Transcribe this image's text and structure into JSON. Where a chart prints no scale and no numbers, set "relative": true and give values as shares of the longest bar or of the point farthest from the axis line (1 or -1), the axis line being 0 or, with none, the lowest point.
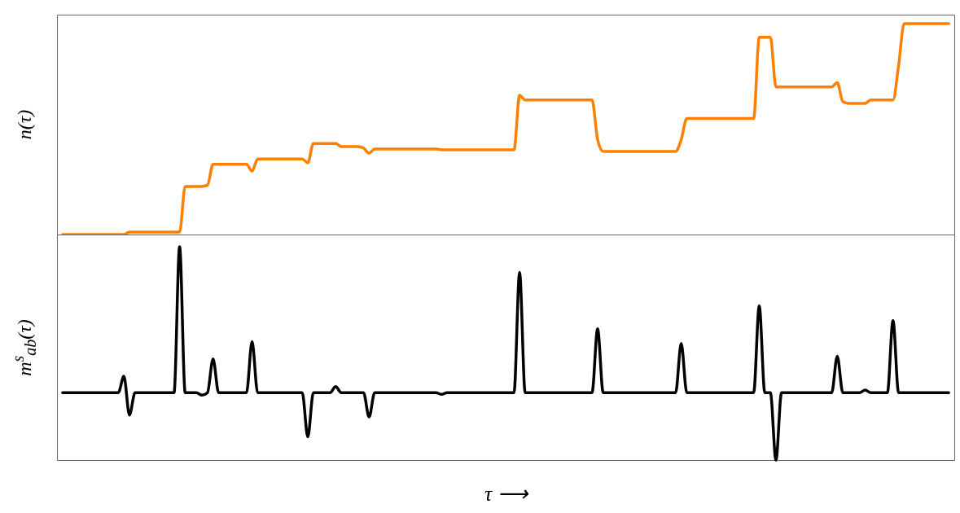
{
  "chart_data": [
    {
      "type": "line",
      "ylabel": "n(τ)",
      "relative": true,
      "tick_labels": false,
      "categories": [
        null,
        null,
        null,
        null,
        null,
        null,
        null,
        null,
        null,
        null,
        null,
        null,
        null,
        null,
        null,
        null,
        null,
        null,
        null,
        null,
        null,
        null,
        null,
        null,
        null,
        null,
        null,
        null,
        null,
        null,
        null,
        null,
        null,
        null,
        null,
        null,
        null,
        null,
        null,
        null,
        null,
        null,
        null,
        null,
        null,
        null,
        null,
        null,
        null,
        null,
        null,
        null,
        null,
        null,
        null,
        null,
        null,
        null,
        null,
        null,
        null,
        null,
        null,
        null,
        null,
        null,
        null,
        null,
        null,
        null,
        null,
        null,
        null,
        null,
        null,
        null,
        null,
        null,
        null,
        null,
        null,
        null,
        null,
        null,
        null,
        null,
        null,
        null,
        null,
        null,
        null,
        null,
        null,
        null,
        null,
        null,
        null,
        null,
        null,
        null,
        null,
        null,
        null,
        null,
        null,
        null,
        null,
        null,
        null,
        null,
        null,
        null,
        null,
        null,
        null,
        null,
        null,
        null,
        null,
        null,
        null,
        null,
        null,
        null,
        null,
        null,
        null,
        null,
        null,
        null,
        null,
        null,
        null,
        null,
        null,
        null,
        null,
        null,
        null,
        null,
        null,
        null,
        null,
        null,
        null,
        null,
        null,
        null,
        null,
        null,
        null,
        null,
        null,
        null,
        null,
        null,
        null,
        null,
        null,
        null
      ],
      "series": [
        {
          "color": "#ff7f00",
          "values": [
            0,
            0,
            0,
            0,
            0,
            0,
            0,
            0,
            0,
            0,
            0,
            0,
            0.012,
            0.012,
            0.012,
            0.012,
            0.012,
            0.012,
            0.012,
            0.012,
            0.012,
            0.012,
            0.228,
            0.228,
            0.228,
            0.228,
            0.234,
            0.333,
            0.333,
            0.333,
            0.333,
            0.333,
            0.333,
            0.333,
            0.3,
            0.358,
            0.358,
            0.358,
            0.358,
            0.358,
            0.358,
            0.358,
            0.358,
            0.358,
            0.34,
            0.431,
            0.431,
            0.431,
            0.431,
            0.431,
            0.417,
            0.417,
            0.417,
            0.417,
            0.41,
            0.386,
            0.405,
            0.405,
            0.405,
            0.405,
            0.405,
            0.405,
            0.405,
            0.405,
            0.405,
            0.405,
            0.405,
            0.405,
            0.402,
            0.402,
            0.402,
            0.402,
            0.402,
            0.402,
            0.402,
            0.402,
            0.402,
            0.402,
            0.402,
            0.402,
            0.402,
            0.402,
            0.66,
            0.638,
            0.638,
            0.638,
            0.638,
            0.638,
            0.638,
            0.638,
            0.638,
            0.638,
            0.638,
            0.638,
            0.638,
            0.638,
            0.45,
            0.394,
            0.394,
            0.394,
            0.394,
            0.394,
            0.394,
            0.394,
            0.394,
            0.394,
            0.394,
            0.394,
            0.394,
            0.394,
            0.394,
            0.45,
            0.55,
            0.55,
            0.55,
            0.55,
            0.55,
            0.55,
            0.55,
            0.55,
            0.55,
            0.55,
            0.55,
            0.55,
            0.55,
            0.935,
            0.935,
            0.935,
            0.7,
            0.7,
            0.7,
            0.7,
            0.7,
            0.7,
            0.7,
            0.7,
            0.7,
            0.7,
            0.7,
            0.72,
            0.63,
            0.622,
            0.622,
            0.622,
            0.622,
            0.638,
            0.638,
            0.638,
            0.638,
            0.638,
            0.8,
            1,
            1,
            1,
            1,
            1,
            1,
            1,
            1,
            1
          ]
        }
      ]
    },
    {
      "type": "line",
      "ylabel": "m$^{s}$$_{ab}$(τ)",
      "xlabel": "τ ⟶",
      "relative": true,
      "tick_labels": false,
      "categories": [
        null,
        null,
        null,
        null,
        null,
        null,
        null,
        null,
        null,
        null,
        null,
        null,
        null,
        null,
        null,
        null,
        null,
        null,
        null,
        null,
        null,
        null,
        null,
        null,
        null,
        null,
        null,
        null,
        null,
        null,
        null,
        null,
        null,
        null,
        null,
        null,
        null,
        null,
        null,
        null,
        null,
        null,
        null,
        null,
        null,
        null,
        null,
        null,
        null,
        null,
        null,
        null,
        null,
        null,
        null,
        null,
        null,
        null,
        null,
        null,
        null,
        null,
        null,
        null,
        null,
        null,
        null,
        null,
        null,
        null,
        null,
        null,
        null,
        null,
        null,
        null,
        null,
        null,
        null,
        null,
        null,
        null,
        null,
        null,
        null,
        null,
        null,
        null,
        null,
        null,
        null,
        null,
        null,
        null,
        null,
        null,
        null,
        null,
        null,
        null,
        null,
        null,
        null,
        null,
        null,
        null,
        null,
        null,
        null,
        null,
        null,
        null,
        null,
        null,
        null,
        null,
        null,
        null,
        null,
        null,
        null,
        null,
        null,
        null,
        null,
        null,
        null,
        null,
        null,
        null,
        null,
        null,
        null,
        null,
        null,
        null,
        null,
        null,
        null,
        null,
        null,
        null,
        null,
        null,
        null,
        null,
        null,
        null,
        null,
        null,
        null,
        null,
        null,
        null,
        null,
        null,
        null,
        null,
        null,
        null
      ],
      "series": [
        {
          "color": "#000000",
          "values": [
            0.316,
            0.316,
            0.316,
            0.316,
            0.316,
            0.316,
            0.316,
            0.316,
            0.316,
            0.316,
            0.316,
            0.393,
            0.211,
            0.316,
            0.316,
            0.316,
            0.316,
            0.316,
            0.316,
            0.316,
            0.316,
            1,
            0.316,
            0.316,
            0.316,
            0.304,
            0.316,
            0.474,
            0.316,
            0.316,
            0.316,
            0.316,
            0.316,
            0.316,
            0.555,
            0.316,
            0.316,
            0.316,
            0.316,
            0.316,
            0.316,
            0.316,
            0.316,
            0.316,
            0.109,
            0.316,
            0.316,
            0.316,
            0.316,
            0.344,
            0.316,
            0.316,
            0.316,
            0.316,
            0.316,
            0.202,
            0.316,
            0.316,
            0.316,
            0.316,
            0.316,
            0.316,
            0.316,
            0.316,
            0.316,
            0.316,
            0.316,
            0.316,
            0.308,
            0.316,
            0.316,
            0.316,
            0.316,
            0.316,
            0.316,
            0.316,
            0.316,
            0.316,
            0.316,
            0.316,
            0.316,
            0.316,
            0.88,
            0.316,
            0.316,
            0.316,
            0.316,
            0.316,
            0.316,
            0.316,
            0.316,
            0.316,
            0.316,
            0.316,
            0.316,
            0.316,
            0.615,
            0.316,
            0.316,
            0.316,
            0.316,
            0.316,
            0.316,
            0.316,
            0.316,
            0.316,
            0.316,
            0.316,
            0.316,
            0.316,
            0.316,
            0.547,
            0.316,
            0.316,
            0.316,
            0.316,
            0.316,
            0.316,
            0.316,
            0.316,
            0.316,
            0.316,
            0.316,
            0.316,
            0.316,
            0.723,
            0.316,
            0.316,
            0,
            0.316,
            0.316,
            0.316,
            0.316,
            0.316,
            0.316,
            0.316,
            0.316,
            0.316,
            0.316,
            0.487,
            0.316,
            0.316,
            0.316,
            0.316,
            0.328,
            0.316,
            0.316,
            0.316,
            0.316,
            0.654,
            0.316,
            0.316,
            0.316,
            0.316,
            0.316,
            0.316,
            0.316,
            0.316,
            0.316,
            0.316
          ]
        }
      ]
    }
  ]
}
